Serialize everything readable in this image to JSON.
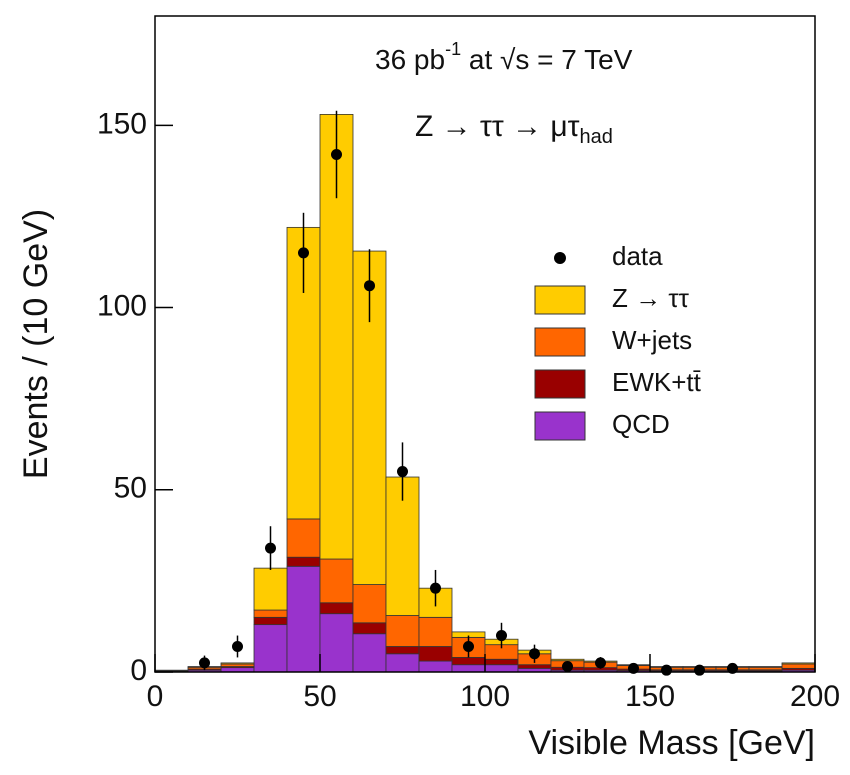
{
  "chart_data": {
    "type": "histogram",
    "bins": [
      0,
      10,
      20,
      30,
      40,
      50,
      60,
      70,
      80,
      90,
      100,
      110,
      120,
      130,
      140,
      150,
      160,
      170,
      180,
      190,
      200
    ],
    "series": [
      {
        "name": "QCD",
        "color": "#9933cc",
        "values": [
          0.2,
          0.5,
          1.2,
          13,
          29,
          16,
          10.5,
          5,
          3,
          2,
          2,
          1,
          0.5,
          0.5,
          0.4,
          0.3,
          0.3,
          0.3,
          0.3,
          0.5
        ]
      },
      {
        "name": "EWK+tt̄",
        "color": "#990000",
        "values": [
          0.1,
          0.3,
          0.3,
          2,
          2.5,
          3,
          3,
          2,
          4,
          2,
          1.5,
          1,
          0.8,
          0.7,
          0.4,
          0.3,
          0.3,
          0.3,
          0.3,
          0.5
        ]
      },
      {
        "name": "W+jets",
        "color": "#ff6600",
        "values": [
          0.2,
          0.5,
          0.7,
          2,
          10.5,
          12,
          10.5,
          8.5,
          8,
          5.5,
          4,
          3,
          1.8,
          1.5,
          1,
          0.7,
          0.7,
          0.7,
          0.7,
          1.2
        ]
      },
      {
        "name": "Z → ττ",
        "color": "#ffcc00",
        "values": [
          0,
          0.2,
          0.3,
          11.5,
          80,
          122,
          91.5,
          38,
          8,
          1.5,
          1.5,
          1,
          0.4,
          0.3,
          0.2,
          0.2,
          0.2,
          0.2,
          0.2,
          0.3
        ]
      }
    ],
    "data": {
      "name": "data",
      "color": "#000000",
      "x": [
        15,
        25,
        35,
        45,
        55,
        65,
        75,
        85,
        95,
        105,
        115,
        125,
        135,
        145,
        155,
        165,
        175
      ],
      "values": [
        2.5,
        7,
        34,
        115,
        142,
        106,
        55,
        23,
        7,
        10,
        5,
        1.5,
        2.5,
        1,
        0.5,
        0.5,
        1
      ],
      "errors": [
        2,
        3,
        6,
        11,
        12,
        10,
        8,
        5,
        3,
        3.5,
        2.5,
        1.3,
        1.6,
        1,
        0.8,
        0.8,
        1
      ]
    },
    "xlim": [
      0,
      200
    ],
    "xticks": [
      0,
      50,
      100,
      150,
      200
    ],
    "ylim": [
      0,
      180
    ],
    "yticks": [
      0,
      50,
      100,
      150
    ],
    "xlabel": "Visible Mass  [GeV]",
    "ylabel": "Events / (10 GeV)",
    "annotations": [
      {
        "text": "36 pb",
        "sup": "-1",
        "rest": " at √s = 7 TeV"
      },
      {
        "text": "Z → ττ → μτ",
        "sub": "had"
      }
    ],
    "legend": "center right"
  }
}
